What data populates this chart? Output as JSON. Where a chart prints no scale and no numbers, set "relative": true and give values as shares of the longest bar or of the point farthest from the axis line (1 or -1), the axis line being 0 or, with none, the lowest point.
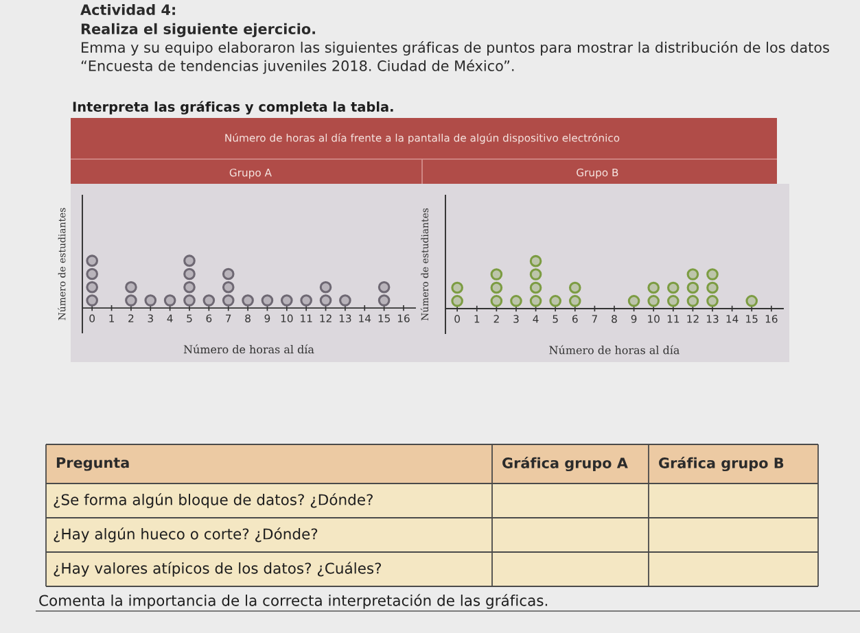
{
  "chart_data": [
    {
      "type": "other",
      "title": "Actividad 4:",
      "subtitle": "Realiza el siguiente ejercicio.",
      "annotations": [
        "Emma y su equipo elaboraron las siguientes gráficas de puntos para mostrar la distribución de los datos “Encuesta de tendencias juveniles 2018. Ciudad de México”.",
        "Interpreta las gráficas y completa la tabla.",
        "Número de horas al día frente a la pantalla de algún dispositivo electrónico"
      ]
    },
    {
      "type": "scatter",
      "title": "Grupo A",
      "xlabel": "Número de horas al día",
      "ylabel": "Número de estudiantes",
      "relative": true,
      "marker": "circle",
      "tick_labels": "x",
      "xlim": [
        -0.5,
        16.6
      ],
      "xticks": [
        0,
        1,
        2,
        3,
        4,
        5,
        6,
        7,
        8,
        9,
        10,
        11,
        12,
        13,
        14,
        15,
        16
      ],
      "series": [
        {
          "color": "#6e6873",
          "x": [
            0,
            0,
            0,
            0,
            2,
            2,
            3,
            4,
            5,
            5,
            5,
            5,
            6,
            7,
            7,
            7,
            8,
            9,
            10,
            11,
            12,
            12,
            13,
            15,
            15
          ],
          "values": [
            0.16,
            0.44,
            0.72,
            1.0,
            0.16,
            0.44,
            0.16,
            0.16,
            0.16,
            0.44,
            0.72,
            1.0,
            0.16,
            0.16,
            0.44,
            0.72,
            0.16,
            0.16,
            0.16,
            0.16,
            0.16,
            0.44,
            0.16,
            0.16,
            0.44
          ]
        }
      ]
    },
    {
      "type": "scatter",
      "title": "Grupo B",
      "xlabel": "Número de horas al día",
      "ylabel": "Número de estudiantes",
      "relative": true,
      "marker": "circle",
      "tick_labels": "x",
      "xlim": [
        -0.6,
        16.6
      ],
      "xticks": [
        0,
        1,
        2,
        3,
        4,
        5,
        6,
        7,
        8,
        9,
        10,
        11,
        12,
        13,
        14,
        15,
        16
      ],
      "series": [
        {
          "color": "#7c9c42",
          "x": [
            0,
            0,
            2,
            2,
            2,
            3,
            4,
            4,
            4,
            4,
            5,
            6,
            6,
            9,
            10,
            10,
            11,
            11,
            12,
            12,
            12,
            13,
            13,
            13,
            15
          ],
          "values": [
            0.16,
            0.44,
            0.16,
            0.44,
            0.72,
            0.16,
            0.16,
            0.44,
            0.72,
            1.0,
            0.16,
            0.16,
            0.44,
            0.16,
            0.16,
            0.44,
            0.16,
            0.44,
            0.16,
            0.44,
            0.72,
            0.16,
            0.44,
            0.72,
            0.16
          ]
        }
      ]
    },
    {
      "type": "other",
      "annotations": [
        "Pregunta",
        "Gráfica grupo A",
        "Gráfica grupo B",
        "¿Se forma algún bloque de datos? ¿Dónde?",
        "¿Hay algún hueco o corte? ¿Dónde?",
        "¿Hay valores atípicos de los datos? ¿Cuáles?",
        "Comenta la importancia de la correcta interpretación de las gráficas."
      ]
    }
  ]
}
